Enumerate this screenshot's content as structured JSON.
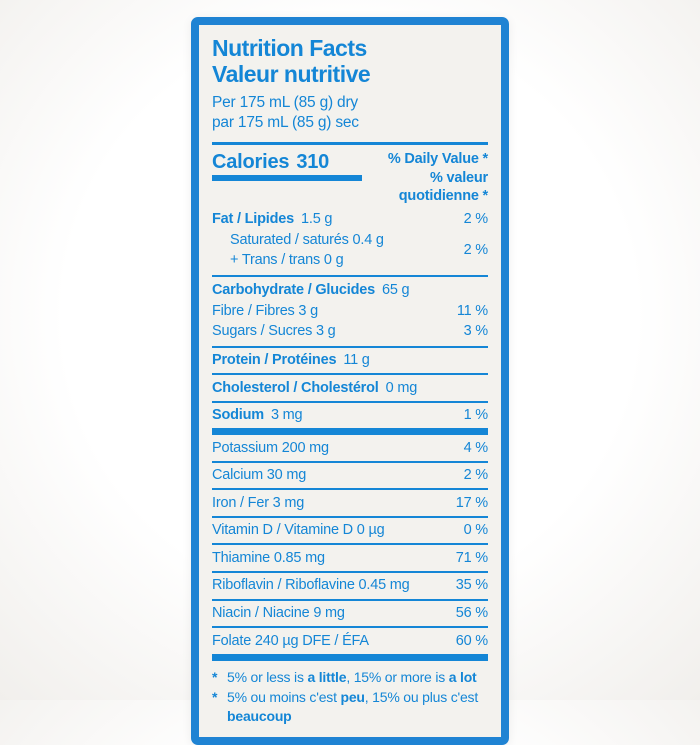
{
  "label": {
    "colors": {
      "blue_text": "#1486d6",
      "border_blue": "#1f83d3",
      "label_background": "#f3f2ee",
      "page_background": "#ffffff"
    },
    "title_en": "Nutrition Facts",
    "title_fr": "Valeur nutritive",
    "serving_en": "Per 175 mL (85 g) dry",
    "serving_fr": "par 175 mL (85 g) sec",
    "calories": {
      "label": "Calories",
      "value": "310"
    },
    "dv_header_en": "% Daily Value *",
    "dv_header_fr": "% valeur quotidienne *",
    "nutrients": {
      "fat": {
        "name": "Fat / Lipides",
        "amount": "1.5 g",
        "dv": "2 %"
      },
      "saturated_trans": {
        "line1": "Saturated / saturés 0.4 g",
        "line2": "+ Trans / trans 0 g",
        "dv": "2 %"
      },
      "carbohydrate": {
        "name": "Carbohydrate / Glucides",
        "amount": "65 g",
        "dv": ""
      },
      "fibre": {
        "name": "Fibre / Fibres 3 g",
        "dv": "11 %"
      },
      "sugars": {
        "name": "Sugars / Sucres 3 g",
        "dv": "3 %"
      },
      "protein": {
        "name": "Protein / Protéines",
        "amount": "11 g",
        "dv": ""
      },
      "cholesterol": {
        "name": "Cholesterol / Cholestérol",
        "amount": "0 mg",
        "dv": ""
      },
      "sodium": {
        "name": "Sodium",
        "amount": "3 mg",
        "dv": "1 %"
      },
      "potassium": {
        "name": "Potassium 200 mg",
        "dv": "4 %"
      },
      "calcium": {
        "name": "Calcium 30 mg",
        "dv": "2 %"
      },
      "iron": {
        "name": "Iron / Fer 3 mg",
        "dv": "17 %"
      },
      "vitamin_d": {
        "name": "Vitamin D / Vitamine D 0 µg",
        "dv": "0 %"
      },
      "thiamine": {
        "name": "Thiamine 0.85 mg",
        "dv": "71 %"
      },
      "riboflavin": {
        "name": "Riboflavin / Riboflavine 0.45 mg",
        "dv": "35 %"
      },
      "niacin": {
        "name": "Niacin / Niacine 9 mg",
        "dv": "56 %"
      },
      "folate": {
        "name": "Folate 240 µg DFE / ÉFA",
        "dv": "60 %"
      }
    },
    "footnote_en": {
      "marker": "*",
      "pre": "5% or less is ",
      "bold1": "a little",
      "mid": ", 15% or more is ",
      "bold2": "a lot"
    },
    "footnote_fr": {
      "marker": "*",
      "pre": "5% ou moins c'est ",
      "bold1": "peu",
      "mid": ", 15% ou plus c'est ",
      "bold2": "beaucoup"
    }
  }
}
